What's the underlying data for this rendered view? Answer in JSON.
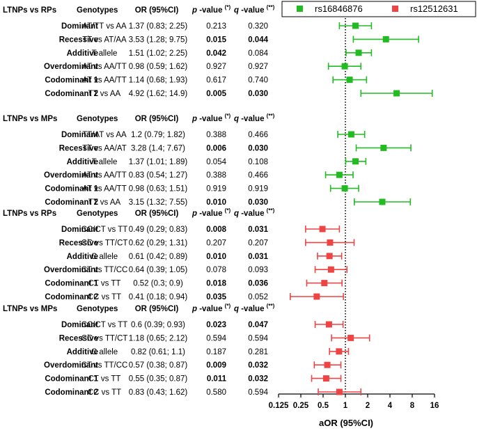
{
  "chart_data": {
    "type": "forest",
    "xlabel": "aOR (95%CI)",
    "x_scale": "log2",
    "xlim": [
      0.125,
      16
    ],
    "xticks": [
      "0.125",
      "0.25",
      "0.5",
      "1",
      "2",
      "4",
      "8",
      "16"
    ],
    "xtick_values": [
      0.125,
      0.25,
      0.5,
      1,
      2,
      4,
      8,
      16
    ],
    "reference_line": 1,
    "legend": [
      {
        "name": "rs16846876",
        "color": "#22bb22"
      },
      {
        "name": "rs12512631",
        "color": "#ee4444"
      }
    ],
    "column_headers": {
      "genotypes": "Genotypes",
      "or": "OR (95%CI)",
      "p_prefix": "p",
      "p_suffix": " -value ",
      "p_mark": "(*)",
      "q_prefix": "q",
      "q_suffix": " -value ",
      "q_mark": "(**)"
    },
    "groups": [
      {
        "title": "LTNPs vs RPs",
        "snp": "rs16846876",
        "color": "#22bb22",
        "rows": [
          {
            "model": "Dominant",
            "genotypes": "AT/TT vs AA",
            "or_text": "1.37 (0.83; 2.25)",
            "or": 1.37,
            "lo": 0.83,
            "hi": 2.25,
            "p": "0.213",
            "p_bold": false,
            "q": "0.320",
            "q_bold": false
          },
          {
            "model": "Recessive",
            "genotypes": "TT vs AT/AA",
            "or_text": "3.53 (1.28; 9.75)",
            "or": 3.53,
            "lo": 1.28,
            "hi": 9.75,
            "p": "0.015",
            "p_bold": true,
            "q": "0.044",
            "q_bold": true
          },
          {
            "model": "Additive",
            "genotypes": "T allele",
            "or_text": "1.51 (1.02; 2.25)",
            "or": 1.51,
            "lo": 1.02,
            "hi": 2.25,
            "p": "0.042",
            "p_bold": true,
            "q": "0.084",
            "q_bold": false
          },
          {
            "model": "Overdominant",
            "genotypes": "AT vs AA/TT",
            "or_text": "0.98 (0.59; 1.62)",
            "or": 0.98,
            "lo": 0.59,
            "hi": 1.62,
            "p": "0.927",
            "p_bold": false,
            "q": "0.927",
            "q_bold": false
          },
          {
            "model": "Codominant 1",
            "genotypes": "AT vs AA/TT",
            "or_text": "1.14 (0.68; 1.93)",
            "or": 1.14,
            "lo": 0.68,
            "hi": 1.93,
            "p": "0.617",
            "p_bold": false,
            "q": "0.740",
            "q_bold": false
          },
          {
            "model": "Codominant 2",
            "genotypes": "TT vs AA",
            "or_text": "4.92 (1.62; 14.9)",
            "or": 4.92,
            "lo": 1.62,
            "hi": 14.9,
            "p": "0.005",
            "p_bold": true,
            "q": "0.030",
            "q_bold": true
          }
        ]
      },
      {
        "title": "LTNPs vs MPs",
        "snp": "rs16846876",
        "color": "#22bb22",
        "rows": [
          {
            "model": "Dominant",
            "genotypes": "TT/AT vs AA",
            "or_text": "1.2 (0.79; 1.82)",
            "or": 1.2,
            "lo": 0.79,
            "hi": 1.82,
            "p": "0.388",
            "p_bold": false,
            "q": "0.466",
            "q_bold": false
          },
          {
            "model": "Recessive",
            "genotypes": "TT vs AA/AT",
            "or_text": "3.28 (1.4; 7.67)",
            "or": 3.28,
            "lo": 1.4,
            "hi": 7.67,
            "p": "0.006",
            "p_bold": true,
            "q": "0.030",
            "q_bold": true
          },
          {
            "model": "Additive",
            "genotypes": "T allele",
            "or_text": "1.37 (1.01; 1.89)",
            "or": 1.37,
            "lo": 1.01,
            "hi": 1.89,
            "p": "0.054",
            "p_bold": false,
            "q": "0.108",
            "q_bold": false
          },
          {
            "model": "Overdominant",
            "genotypes": "AT vs AA/TT",
            "or_text": "0.83 (0.54; 1.27)",
            "or": 0.83,
            "lo": 0.54,
            "hi": 1.27,
            "p": "0.388",
            "p_bold": false,
            "q": "0.466",
            "q_bold": false
          },
          {
            "model": "Codominant 1",
            "genotypes": "AT vs AA/TT",
            "or_text": "0.98 (0.63; 1.51)",
            "or": 0.98,
            "lo": 0.63,
            "hi": 1.51,
            "p": "0.919",
            "p_bold": false,
            "q": "0.919",
            "q_bold": false
          },
          {
            "model": "Codominant 2",
            "genotypes": "TT vs AA",
            "or_text": "3.15 (1.32; 7.55)",
            "or": 3.15,
            "lo": 1.32,
            "hi": 7.55,
            "p": "0.010",
            "p_bold": true,
            "q": "0.030",
            "q_bold": true
          }
        ]
      },
      {
        "title": "LTNPs vs RPs",
        "snp": "rs12512631",
        "color": "#ee4444",
        "rows": [
          {
            "model": "Dominant",
            "genotypes": "CC/CT vs TT",
            "or_text": "0.49 (0.29; 0.83)",
            "or": 0.49,
            "lo": 0.29,
            "hi": 0.83,
            "p": "0.008",
            "p_bold": true,
            "q": "0.031",
            "q_bold": true
          },
          {
            "model": "Recessive",
            "genotypes": "CC vs TT/CT",
            "or_text": "0.62 (0.29; 1.31)",
            "or": 0.62,
            "lo": 0.29,
            "hi": 1.31,
            "p": "0.207",
            "p_bold": false,
            "q": "0.207",
            "q_bold": false
          },
          {
            "model": "Additive",
            "genotypes": "C allele",
            "or_text": "0.61 (0.42; 0.89)",
            "or": 0.61,
            "lo": 0.42,
            "hi": 0.89,
            "p": "0.010",
            "p_bold": true,
            "q": "0.031",
            "q_bold": true
          },
          {
            "model": "Overdominant",
            "genotypes": "CT vs TT/CC",
            "or_text": "0.64 (0.39; 1.05)",
            "or": 0.64,
            "lo": 0.39,
            "hi": 1.05,
            "p": "0.078",
            "p_bold": false,
            "q": "0.093",
            "q_bold": false
          },
          {
            "model": "Codominant 1",
            "genotypes": "CT vs TT",
            "or_text": "0.52 (0.3; 0.9)",
            "or": 0.52,
            "lo": 0.3,
            "hi": 0.9,
            "p": "0.018",
            "p_bold": true,
            "q": "0.036",
            "q_bold": true
          },
          {
            "model": "Codominant 2",
            "genotypes": "CC vs TT",
            "or_text": "0.41 (0.18; 0.94)",
            "or": 0.41,
            "lo": 0.18,
            "hi": 0.94,
            "p": "0.035",
            "p_bold": true,
            "q": "0.052",
            "q_bold": false
          }
        ]
      },
      {
        "title": "LTNPs vs MPs",
        "snp": "rs12512631",
        "color": "#ee4444",
        "rows": [
          {
            "model": "Dominant",
            "genotypes": "CC/CT vs TT",
            "or_text": "0.6 (0.39; 0.93)",
            "or": 0.6,
            "lo": 0.39,
            "hi": 0.93,
            "p": "0.023",
            "p_bold": true,
            "q": "0.047",
            "q_bold": true
          },
          {
            "model": "Recessive",
            "genotypes": "CC vs TT/CT",
            "or_text": "1.18 (0.65; 2.12)",
            "or": 1.18,
            "lo": 0.65,
            "hi": 2.12,
            "p": "0.594",
            "p_bold": false,
            "q": "0.594",
            "q_bold": false
          },
          {
            "model": "Additive",
            "genotypes": "C allele",
            "or_text": "0.82 (0.61; 1.1)",
            "or": 0.82,
            "lo": 0.61,
            "hi": 1.1,
            "p": "0.187",
            "p_bold": false,
            "q": "0.281",
            "q_bold": false
          },
          {
            "model": "Overdominant",
            "genotypes": "CT vs TT/CC",
            "or_text": "0.57 (0.38; 0.87)",
            "or": 0.57,
            "lo": 0.38,
            "hi": 0.87,
            "p": "0.009",
            "p_bold": true,
            "q": "0.032",
            "q_bold": true
          },
          {
            "model": "Codominant 1",
            "genotypes": "CT vs TT",
            "or_text": "0.55 (0.35; 0.87)",
            "or": 0.55,
            "lo": 0.35,
            "hi": 0.87,
            "p": "0.011",
            "p_bold": true,
            "q": "0.032",
            "q_bold": true
          },
          {
            "model": "Codominant 2",
            "genotypes": "CC vs TT",
            "or_text": "0.83 (0.43; 1.62)",
            "or": 0.83,
            "lo": 0.43,
            "hi": 1.62,
            "p": "0.580",
            "p_bold": false,
            "q": "0.594",
            "q_bold": false
          }
        ]
      }
    ]
  }
}
